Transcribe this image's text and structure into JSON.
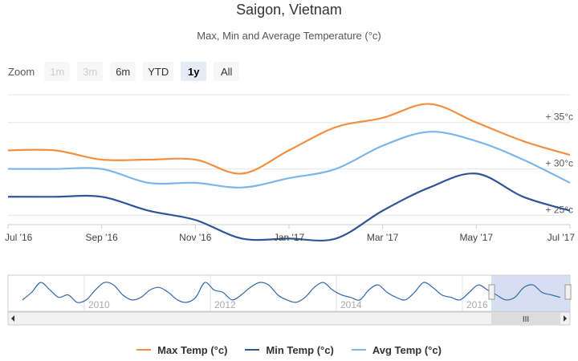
{
  "title": "Saigon, Vietnam",
  "subtitle": "Max, Min and Average Temperature (°c)",
  "zoom": {
    "label": "Zoom",
    "buttons": [
      {
        "label": "1m",
        "state": "disabled"
      },
      {
        "label": "3m",
        "state": "disabled"
      },
      {
        "label": "6m",
        "state": "normal"
      },
      {
        "label": "YTD",
        "state": "normal"
      },
      {
        "label": "1y",
        "state": "active"
      },
      {
        "label": "All",
        "state": "normal"
      }
    ]
  },
  "chart_data": {
    "type": "line",
    "x": [
      "2016-07",
      "2016-08",
      "2016-09",
      "2016-10",
      "2016-11",
      "2016-12",
      "2017-01",
      "2017-02",
      "2017-03",
      "2017-04",
      "2017-05",
      "2017-06",
      "2017-07"
    ],
    "x_tick_labels": [
      "Jul '16",
      "Sep '16",
      "Nov '16",
      "Jan '17",
      "Mar '17",
      "May '17",
      "Jul '17"
    ],
    "y_tick_labels": [
      "+ 25°c",
      "+ 30°c",
      "+ 35°c"
    ],
    "y_ticks": [
      25,
      30,
      35
    ],
    "ylim": [
      24,
      38
    ],
    "grid": true,
    "legend_position": "bottom",
    "series": [
      {
        "name": "Max Temp (°c)",
        "color": "#f28f43",
        "values": [
          32.0,
          32.0,
          31.0,
          31.0,
          31.0,
          29.5,
          32.0,
          34.5,
          35.5,
          37.0,
          35.0,
          33.0,
          31.5
        ]
      },
      {
        "name": "Min Temp (°c)",
        "color": "#2f5597",
        "values": [
          27.0,
          27.0,
          27.0,
          25.5,
          24.5,
          22.5,
          22.5,
          22.5,
          25.5,
          28.0,
          29.5,
          27.0,
          25.5
        ]
      },
      {
        "name": "Avg Temp (°c)",
        "color": "#7cb5ec",
        "values": [
          30.0,
          30.0,
          30.0,
          28.5,
          28.5,
          28.0,
          29.0,
          30.0,
          32.5,
          34.0,
          33.0,
          31.0,
          28.5
        ]
      }
    ]
  },
  "navigator": {
    "year_labels": [
      "2010",
      "2012",
      "2014",
      "2016"
    ],
    "values": [
      1.2,
      1.5,
      1.9,
      1.6,
      1.3,
      1.4,
      1.1,
      1.2,
      1.6,
      1.9,
      1.8,
      1.4,
      1.2,
      1.3,
      1.6,
      1.7,
      1.5,
      1.2,
      1.1,
      1.3,
      1.9,
      1.6,
      1.5,
      1.2,
      1.4,
      1.7,
      1.9,
      1.8,
      1.4,
      1.2,
      1.1,
      1.3,
      1.7,
      1.9,
      1.6,
      1.4,
      1.3,
      1.2,
      1.6,
      1.8,
      1.5,
      1.3,
      1.2,
      1.5,
      1.9,
      1.7,
      1.4,
      1.3,
      1.2,
      1.5,
      1.8,
      1.6,
      1.4,
      1.2,
      1.3,
      1.7,
      1.8,
      1.5,
      1.4,
      1.3
    ],
    "selection_start_fraction": 0.86,
    "selection_end_fraction": 1.0,
    "scrollbar_grip": "III"
  },
  "colors": {
    "max": "#f28f43",
    "min": "#2f5597",
    "avg": "#7cb5ec",
    "grid": "#e6e6e6",
    "navigator_fill": "#c8d4ec",
    "navigator_line": "#3366aa"
  }
}
